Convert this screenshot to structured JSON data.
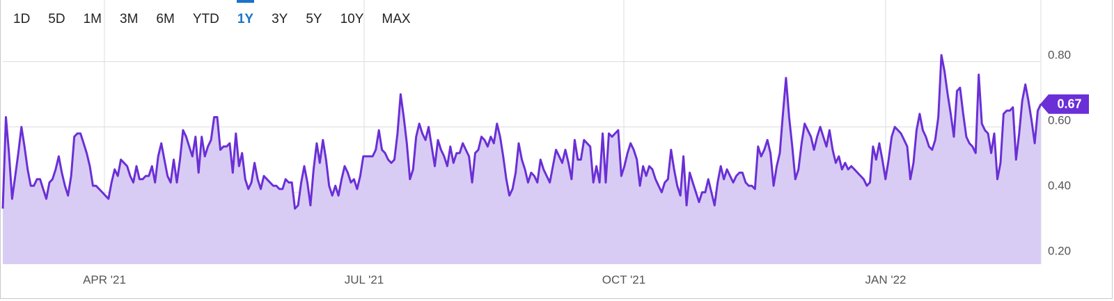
{
  "range_buttons": [
    {
      "label": "1D",
      "active": false
    },
    {
      "label": "5D",
      "active": false
    },
    {
      "label": "1M",
      "active": false
    },
    {
      "label": "3M",
      "active": false
    },
    {
      "label": "6M",
      "active": false
    },
    {
      "label": "YTD",
      "active": false
    },
    {
      "label": "1Y",
      "active": true
    },
    {
      "label": "3Y",
      "active": false
    },
    {
      "label": "5Y",
      "active": false
    },
    {
      "label": "10Y",
      "active": false
    },
    {
      "label": "MAX",
      "active": false
    }
  ],
  "colors": {
    "line": "#6a2fd6",
    "fill": "#d9ccf4",
    "grid": "#dcdcdc",
    "active_tab": "#1a73c8",
    "badge": "#6a2fd6"
  },
  "chart_data": {
    "type": "area",
    "x_ticks": [
      "APR '21",
      "JUL '21",
      "OCT '21",
      "JAN '22"
    ],
    "y_ticks": [
      "0.80",
      "0.60",
      "0.40",
      "0.20"
    ],
    "ylim": [
      0.18,
      0.98
    ],
    "grid": true,
    "last_value_label": "0.67",
    "series": [
      {
        "values": [
          0.35,
          0.63,
          0.52,
          0.38,
          0.45,
          0.52,
          0.6,
          0.54,
          0.47,
          0.42,
          0.42,
          0.44,
          0.44,
          0.41,
          0.38,
          0.43,
          0.44,
          0.47,
          0.51,
          0.46,
          0.42,
          0.39,
          0.45,
          0.57,
          0.58,
          0.58,
          0.55,
          0.52,
          0.48,
          0.42,
          0.42,
          0.41,
          0.4,
          0.39,
          0.38,
          0.43,
          0.47,
          0.45,
          0.5,
          0.49,
          0.48,
          0.45,
          0.43,
          0.48,
          0.44,
          0.44,
          0.45,
          0.45,
          0.48,
          0.43,
          0.51,
          0.55,
          0.5,
          0.45,
          0.43,
          0.5,
          0.43,
          0.5,
          0.59,
          0.57,
          0.54,
          0.51,
          0.57,
          0.46,
          0.57,
          0.51,
          0.54,
          0.56,
          0.63,
          0.63,
          0.53,
          0.54,
          0.54,
          0.55,
          0.46,
          0.58,
          0.48,
          0.52,
          0.44,
          0.41,
          0.43,
          0.49,
          0.44,
          0.41,
          0.45,
          0.44,
          0.43,
          0.42,
          0.42,
          0.41,
          0.41,
          0.44,
          0.43,
          0.43,
          0.35,
          0.36,
          0.43,
          0.48,
          0.43,
          0.36,
          0.47,
          0.55,
          0.49,
          0.56,
          0.5,
          0.42,
          0.39,
          0.42,
          0.39,
          0.44,
          0.48,
          0.46,
          0.43,
          0.44,
          0.41,
          0.45,
          0.51,
          0.51,
          0.51,
          0.51,
          0.53,
          0.59,
          0.53,
          0.52,
          0.5,
          0.49,
          0.5,
          0.58,
          0.7,
          0.63,
          0.55,
          0.44,
          0.47,
          0.57,
          0.61,
          0.58,
          0.56,
          0.6,
          0.54,
          0.48,
          0.56,
          0.53,
          0.51,
          0.48,
          0.54,
          0.49,
          0.52,
          0.52,
          0.55,
          0.53,
          0.51,
          0.43,
          0.52,
          0.53,
          0.57,
          0.56,
          0.54,
          0.57,
          0.55,
          0.61,
          0.57,
          0.51,
          0.44,
          0.39,
          0.41,
          0.46,
          0.55,
          0.5,
          0.47,
          0.43,
          0.46,
          0.45,
          0.43,
          0.5,
          0.47,
          0.45,
          0.43,
          0.48,
          0.53,
          0.51,
          0.49,
          0.53,
          0.49,
          0.44,
          0.56,
          0.5,
          0.5,
          0.56,
          0.55,
          0.54,
          0.43,
          0.48,
          0.43,
          0.58,
          0.43,
          0.58,
          0.57,
          0.58,
          0.59,
          0.45,
          0.48,
          0.52,
          0.55,
          0.53,
          0.5,
          0.42,
          0.48,
          0.45,
          0.48,
          0.47,
          0.44,
          0.42,
          0.4,
          0.43,
          0.44,
          0.53,
          0.47,
          0.42,
          0.39,
          0.51,
          0.36,
          0.46,
          0.43,
          0.4,
          0.37,
          0.4,
          0.4,
          0.44,
          0.4,
          0.36,
          0.43,
          0.48,
          0.44,
          0.47,
          0.45,
          0.43,
          0.45,
          0.46,
          0.46,
          0.43,
          0.42,
          0.42,
          0.41,
          0.54,
          0.51,
          0.53,
          0.56,
          0.52,
          0.42,
          0.48,
          0.52,
          0.64,
          0.75,
          0.63,
          0.54,
          0.44,
          0.47,
          0.55,
          0.61,
          0.59,
          0.57,
          0.53,
          0.57,
          0.6,
          0.57,
          0.54,
          0.59,
          0.53,
          0.49,
          0.51,
          0.47,
          0.49,
          0.47,
          0.48,
          0.47,
          0.46,
          0.45,
          0.44,
          0.42,
          0.43,
          0.54,
          0.5,
          0.55,
          0.5,
          0.44,
          0.5,
          0.57,
          0.6,
          0.59,
          0.58,
          0.56,
          0.54,
          0.44,
          0.49,
          0.59,
          0.64,
          0.59,
          0.57,
          0.54,
          0.53,
          0.56,
          0.63,
          0.82,
          0.77,
          0.7,
          0.64,
          0.57,
          0.71,
          0.72,
          0.64,
          0.57,
          0.55,
          0.54,
          0.52,
          0.76,
          0.61,
          0.59,
          0.58,
          0.52,
          0.58,
          0.44,
          0.49,
          0.64,
          0.65,
          0.65,
          0.66,
          0.5,
          0.58,
          0.68,
          0.73,
          0.68,
          0.62,
          0.55,
          0.65,
          0.67
        ]
      }
    ]
  }
}
